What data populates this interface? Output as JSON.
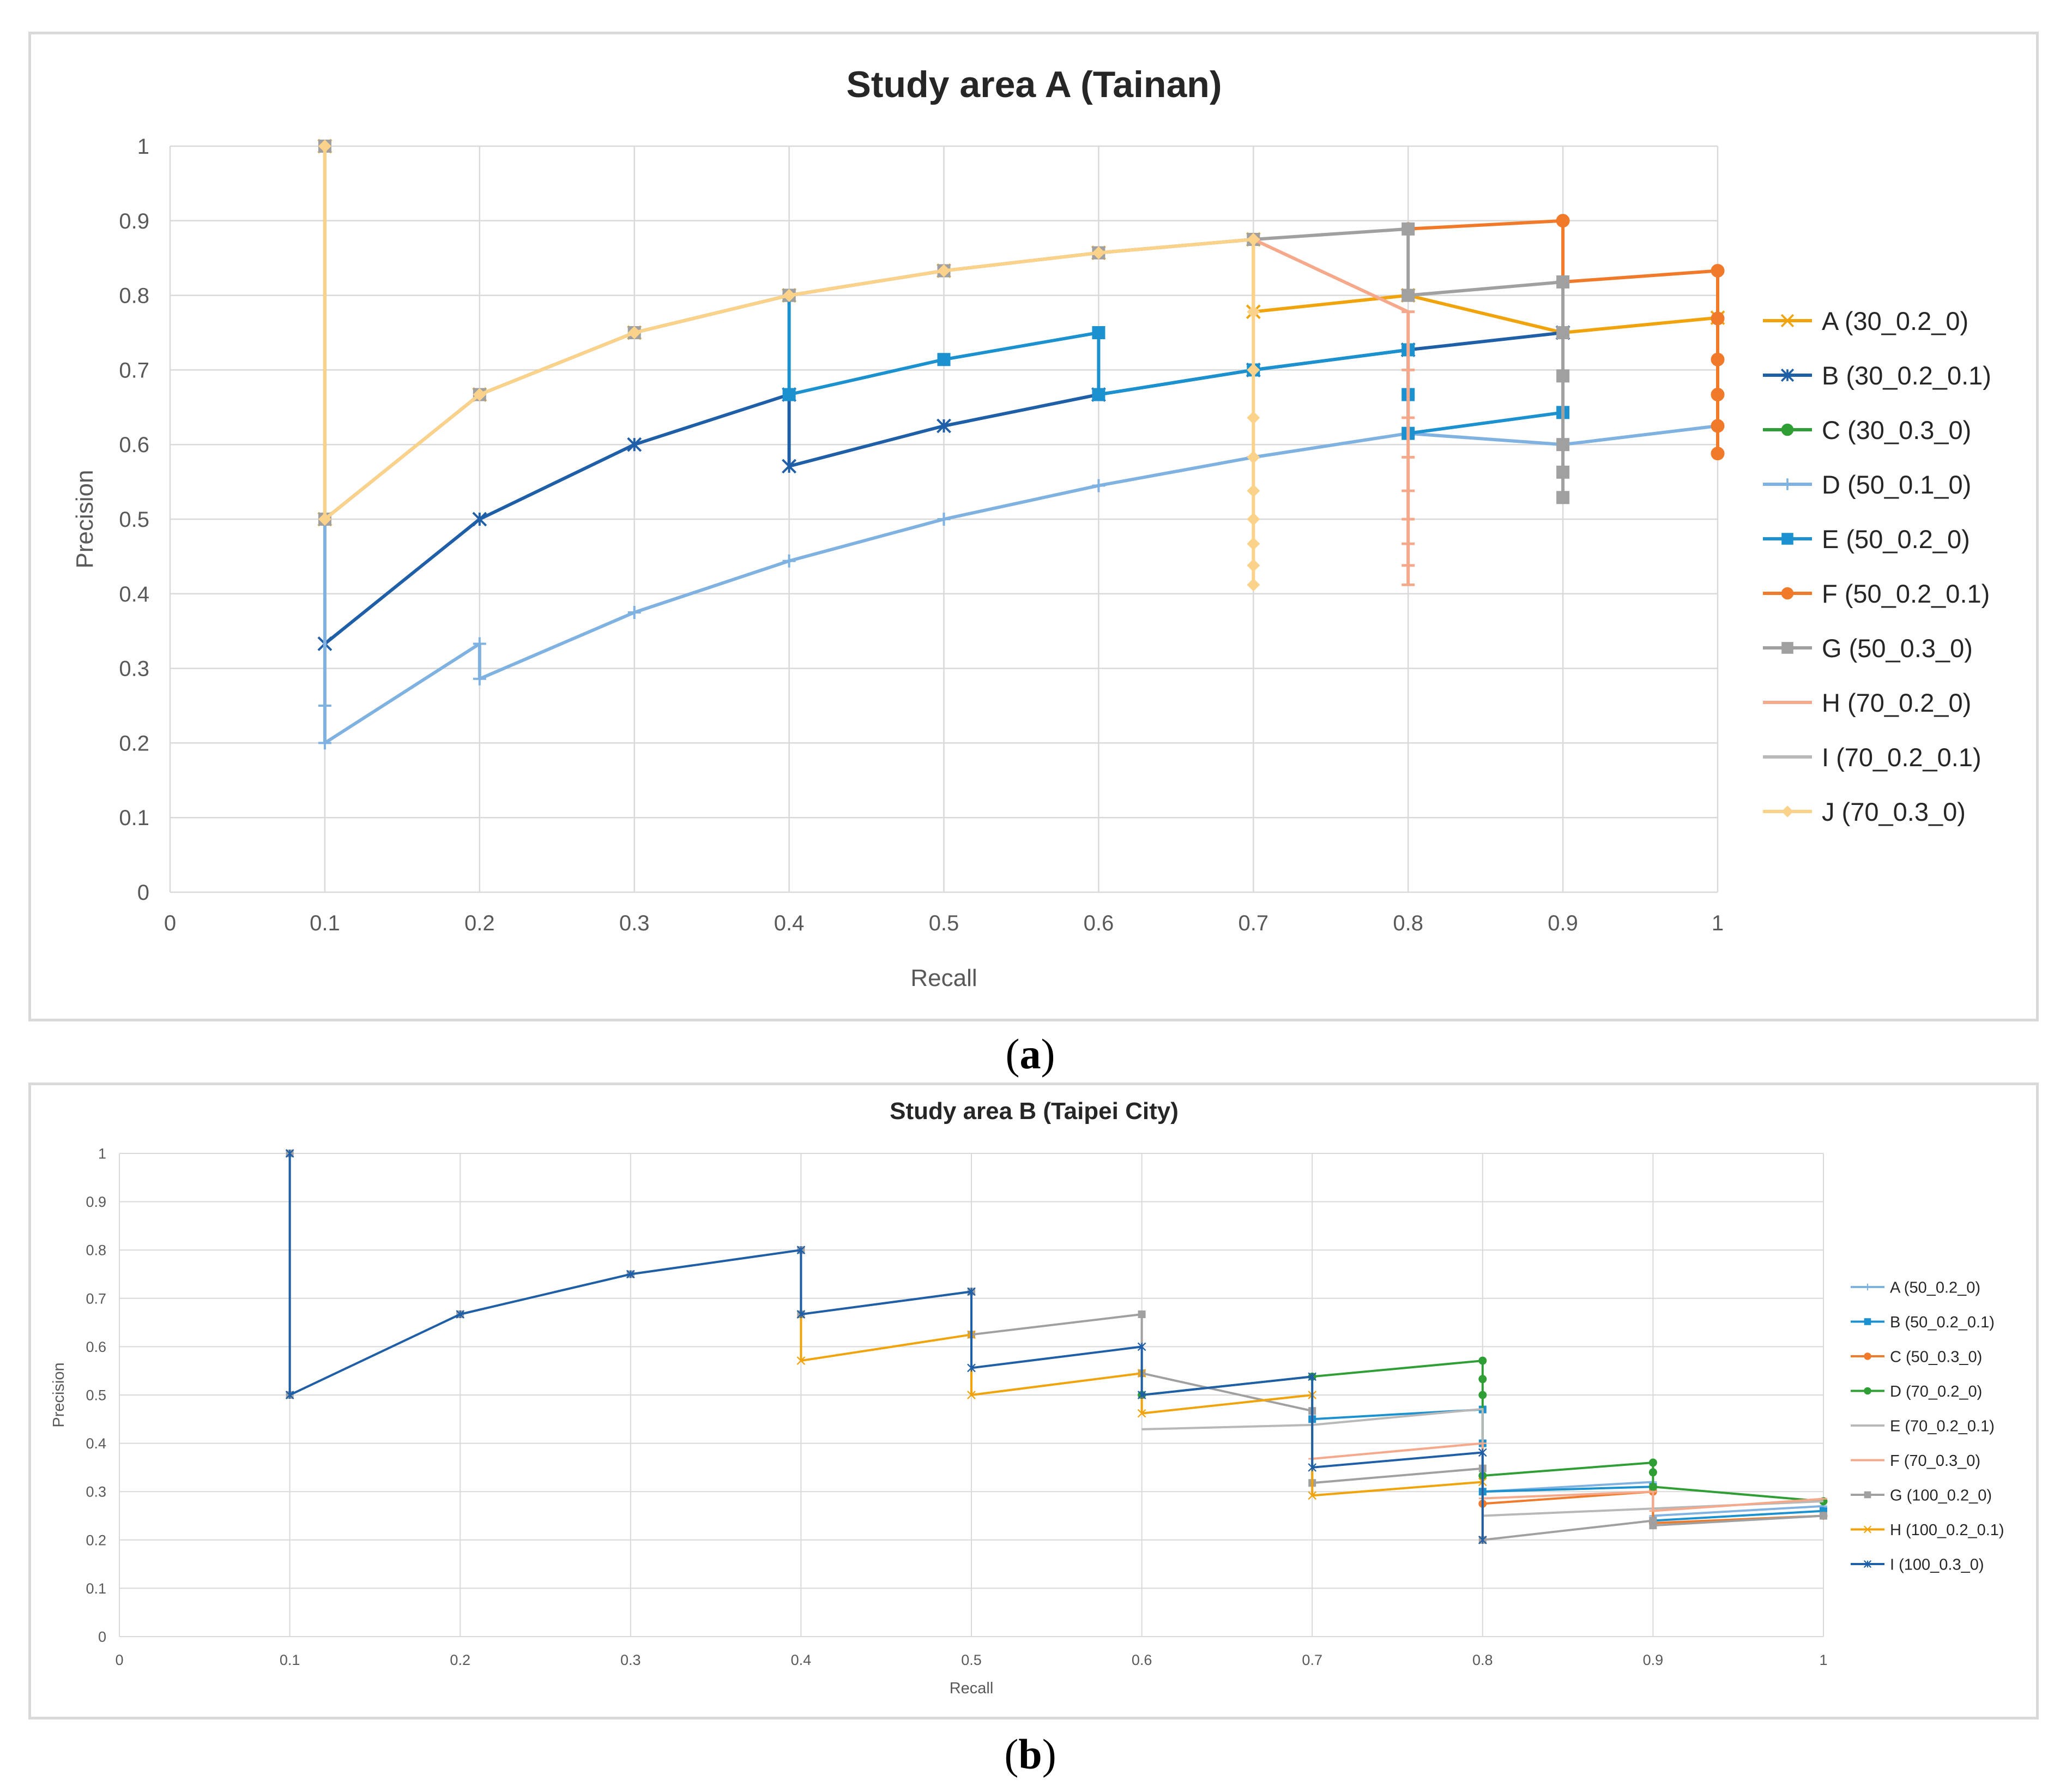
{
  "captions": {
    "a_letter": "a",
    "b_letter": "b"
  },
  "chart_data": [
    {
      "type": "line",
      "title": "Study area A (Tainan)",
      "xlabel": "Recall",
      "ylabel": "Precision",
      "xlim": [
        0,
        1
      ],
      "ylim": [
        0,
        1
      ],
      "xticks": [
        "0",
        "0.1",
        "0.2",
        "0.3",
        "0.4",
        "0.5",
        "0.6",
        "0.7",
        "0.8",
        "0.9",
        "1"
      ],
      "yticks": [
        "0",
        "0.1",
        "0.2",
        "0.3",
        "0.4",
        "0.5",
        "0.6",
        "0.7",
        "0.8",
        "0.9",
        "1"
      ],
      "grid": true,
      "legend": "right",
      "series": [
        {
          "name": "A (30_0.2_0)",
          "color": "#f0a30a",
          "marker": "x",
          "points": [
            [
              0.1,
              1
            ],
            [
              0.1,
              0.5
            ],
            [
              0.2,
              0.667
            ],
            [
              0.3,
              0.75
            ],
            [
              0.4,
              0.8
            ],
            [
              0.5,
              0.833
            ],
            [
              0.6,
              0.857
            ],
            [
              0.7,
              0.875
            ],
            [
              0.7,
              0.778
            ],
            [
              0.8,
              0.8
            ],
            [
              0.9,
              0.75
            ],
            [
              1,
              0.77
            ]
          ]
        },
        {
          "name": "B (30_0.2_0.1)",
          "color": "#1f5fa8",
          "marker": "star",
          "points": [
            [
              0.1,
              0.333
            ],
            [
              0.2,
              0.5
            ],
            [
              0.3,
              0.6
            ],
            [
              0.4,
              0.667
            ],
            [
              0.4,
              0.571
            ],
            [
              0.5,
              0.625
            ],
            [
              0.6,
              0.667
            ],
            [
              0.7,
              0.7
            ],
            [
              0.8,
              0.727
            ],
            [
              0.9,
              0.75
            ]
          ]
        },
        {
          "name": "C (30_0.3_0)",
          "color": "#2e9e35",
          "marker": "circle",
          "points": []
        },
        {
          "name": "D (50_0.1_0)",
          "color": "#7fb2e0",
          "marker": "plus",
          "points": [
            [
              0.1,
              0.5
            ],
            [
              0.1,
              0.25
            ],
            [
              0.1,
              0.2
            ],
            [
              0.2,
              0.333
            ],
            [
              0.2,
              0.286
            ],
            [
              0.3,
              0.375
            ],
            [
              0.4,
              0.444
            ],
            [
              0.5,
              0.5
            ],
            [
              0.6,
              0.545
            ],
            [
              0.7,
              0.583
            ],
            [
              0.8,
              0.615
            ],
            [
              0.9,
              0.6
            ],
            [
              1,
              0.625
            ]
          ]
        },
        {
          "name": "E (50_0.2_0)",
          "color": "#1b91d0",
          "marker": "square",
          "points": [
            [
              0.4,
              0.8
            ],
            [
              0.4,
              0.667
            ],
            [
              0.5,
              0.714
            ],
            [
              0.6,
              0.75
            ],
            [
              0.6,
              0.667
            ],
            [
              0.7,
              0.7
            ],
            [
              0.8,
              0.727
            ],
            [
              0.8,
              0.667
            ],
            [
              0.8,
              0.615
            ],
            [
              0.9,
              0.643
            ]
          ]
        },
        {
          "name": "F (50_0.2_0.1)",
          "color": "#f07a2a",
          "marker": "circle",
          "points": [
            [
              0.8,
              0.889
            ],
            [
              0.9,
              0.9
            ],
            [
              0.9,
              0.818
            ],
            [
              1,
              0.833
            ],
            [
              1,
              0.769
            ],
            [
              1,
              0.714
            ],
            [
              1,
              0.667
            ],
            [
              1,
              0.625
            ],
            [
              1,
              0.588
            ]
          ]
        },
        {
          "name": "G (50_0.3_0)",
          "color": "#a0a0a0",
          "marker": "square",
          "points": [
            [
              0.1,
              1
            ],
            [
              0.1,
              0.5
            ],
            [
              0.2,
              0.667
            ],
            [
              0.3,
              0.75
            ],
            [
              0.4,
              0.8
            ],
            [
              0.5,
              0.833
            ],
            [
              0.6,
              0.857
            ],
            [
              0.7,
              0.875
            ],
            [
              0.8,
              0.889
            ],
            [
              0.8,
              0.8
            ],
            [
              0.9,
              0.818
            ],
            [
              0.9,
              0.75
            ],
            [
              0.9,
              0.692
            ],
            [
              0.9,
              0.6
            ],
            [
              0.9,
              0.563
            ],
            [
              0.9,
              0.529
            ]
          ]
        },
        {
          "name": "H (70_0.2_0)",
          "color": "#f6a88a",
          "marker": "dash",
          "points": [
            [
              0.7,
              0.875
            ],
            [
              0.8,
              0.778
            ],
            [
              0.8,
              0.7
            ],
            [
              0.8,
              0.636
            ],
            [
              0.8,
              0.583
            ],
            [
              0.8,
              0.538
            ],
            [
              0.8,
              0.5
            ],
            [
              0.8,
              0.467
            ],
            [
              0.8,
              0.438
            ],
            [
              0.8,
              0.412
            ]
          ]
        },
        {
          "name": "I (70_0.2_0.1)",
          "color": "#b8b8b8",
          "marker": "none",
          "points": []
        },
        {
          "name": "J (70_0.3_0)",
          "color": "#fbd28a",
          "marker": "diamond",
          "points": [
            [
              0.1,
              1
            ],
            [
              0.1,
              0.5
            ],
            [
              0.2,
              0.667
            ],
            [
              0.3,
              0.75
            ],
            [
              0.4,
              0.8
            ],
            [
              0.5,
              0.833
            ],
            [
              0.6,
              0.857
            ],
            [
              0.7,
              0.875
            ],
            [
              0.7,
              0.778
            ],
            [
              0.7,
              0.7
            ],
            [
              0.7,
              0.636
            ],
            [
              0.7,
              0.583
            ],
            [
              0.7,
              0.538
            ],
            [
              0.7,
              0.5
            ],
            [
              0.7,
              0.467
            ],
            [
              0.7,
              0.438
            ],
            [
              0.7,
              0.412
            ]
          ]
        }
      ]
    },
    {
      "type": "line",
      "title": "Study area B (Taipei City)",
      "xlabel": "Recall",
      "ylabel": "Precision",
      "xlim": [
        0,
        1
      ],
      "ylim": [
        0,
        1
      ],
      "xticks": [
        "0",
        "0.1",
        "0.2",
        "0.3",
        "0.4",
        "0.5",
        "0.6",
        "0.7",
        "0.8",
        "0.9",
        "1"
      ],
      "yticks": [
        "0",
        "0.1",
        "0.2",
        "0.3",
        "0.4",
        "0.5",
        "0.6",
        "0.7",
        "0.8",
        "0.9",
        "1"
      ],
      "grid": true,
      "legend": "right",
      "series": [
        {
          "name": "A (50_0.2_0)",
          "color": "#7fb2e0",
          "marker": "plus",
          "points": [
            [
              0.8,
              0.3
            ],
            [
              0.9,
              0.32
            ],
            [
              0.9,
              0.25
            ],
            [
              1,
              0.27
            ]
          ]
        },
        {
          "name": "B (50_0.2_0.1)",
          "color": "#1b91d0",
          "marker": "square",
          "points": [
            [
              0.7,
              0.45
            ],
            [
              0.8,
              0.47
            ],
            [
              0.8,
              0.4
            ],
            [
              0.8,
              0.3
            ],
            [
              0.9,
              0.31
            ],
            [
              0.9,
              0.24
            ],
            [
              1,
              0.26
            ]
          ]
        },
        {
          "name": "C (50_0.3_0)",
          "color": "#f07a2a",
          "marker": "circle",
          "points": [
            [
              0.8,
              0.275
            ],
            [
              0.9,
              0.3
            ],
            [
              0.9,
              0.235
            ],
            [
              1,
              0.25
            ]
          ]
        },
        {
          "name": "D (70_0.2_0)",
          "color": "#2e9e35",
          "marker": "circle",
          "points": [
            [
              0.6,
              0.5
            ],
            [
              0.7,
              0.538
            ],
            [
              0.8,
              0.571
            ],
            [
              0.8,
              0.533
            ],
            [
              0.8,
              0.5
            ],
            [
              0.8,
              0.333
            ],
            [
              0.9,
              0.36
            ],
            [
              0.9,
              0.34
            ],
            [
              0.9,
              0.31
            ],
            [
              1,
              0.28
            ]
          ]
        },
        {
          "name": "E (70_0.2_0.1)",
          "color": "#b8b8b8",
          "marker": "none",
          "points": [
            [
              0.6,
              0.429
            ],
            [
              0.7,
              0.438
            ],
            [
              0.8,
              0.471
            ],
            [
              0.8,
              0.25
            ],
            [
              0.9,
              0.265
            ],
            [
              1,
              0.28
            ]
          ]
        },
        {
          "name": "F (70_0.3_0)",
          "color": "#f6a88a",
          "marker": "dash",
          "points": [
            [
              0.7,
              0.368
            ],
            [
              0.8,
              0.4
            ],
            [
              0.8,
              0.286
            ],
            [
              0.9,
              0.3
            ],
            [
              0.9,
              0.26
            ],
            [
              1,
              0.285
            ]
          ]
        },
        {
          "name": "G (100_0.2_0)",
          "color": "#a0a0a0",
          "marker": "square",
          "points": [
            [
              0.1,
              1
            ],
            [
              0.1,
              0.5
            ],
            [
              0.2,
              0.667
            ],
            [
              0.3,
              0.75
            ],
            [
              0.4,
              0.8
            ],
            [
              0.4,
              0.667
            ],
            [
              0.5,
              0.714
            ],
            [
              0.5,
              0.625
            ],
            [
              0.6,
              0.667
            ],
            [
              0.6,
              0.545
            ],
            [
              0.7,
              0.467
            ],
            [
              0.7,
              0.318
            ],
            [
              0.8,
              0.348
            ],
            [
              0.8,
              0.2
            ],
            [
              0.9,
              0.24
            ],
            [
              0.9,
              0.23
            ],
            [
              1,
              0.25
            ]
          ]
        },
        {
          "name": "H (100_0.2_0.1)",
          "color": "#f0a30a",
          "marker": "x",
          "points": [
            [
              0.4,
              0.667
            ],
            [
              0.4,
              0.571
            ],
            [
              0.5,
              0.625
            ],
            [
              0.5,
              0.5
            ],
            [
              0.6,
              0.545
            ],
            [
              0.6,
              0.462
            ],
            [
              0.7,
              0.5
            ],
            [
              0.7,
              0.292
            ],
            [
              0.8,
              0.32
            ],
            [
              0.8,
              0.2
            ]
          ]
        },
        {
          "name": "I (100_0.3_0)",
          "color": "#1f5fa8",
          "marker": "star",
          "points": [
            [
              0.1,
              1
            ],
            [
              0.1,
              0.5
            ],
            [
              0.2,
              0.667
            ],
            [
              0.3,
              0.75
            ],
            [
              0.4,
              0.8
            ],
            [
              0.4,
              0.667
            ],
            [
              0.5,
              0.714
            ],
            [
              0.5,
              0.556
            ],
            [
              0.6,
              0.6
            ],
            [
              0.6,
              0.5
            ],
            [
              0.7,
              0.538
            ],
            [
              0.7,
              0.35
            ],
            [
              0.8,
              0.381
            ],
            [
              0.8,
              0.2
            ]
          ]
        }
      ]
    }
  ]
}
